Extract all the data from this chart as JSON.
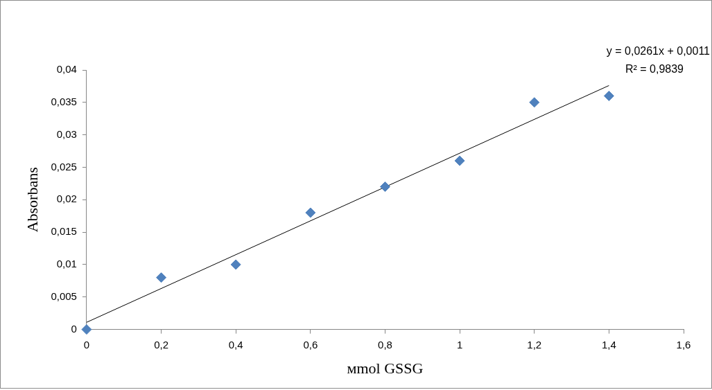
{
  "chart_data": {
    "type": "scatter",
    "xlabel": "мmol GSSG",
    "ylabel": "Absorbans",
    "xlim": [
      0,
      1.6
    ],
    "ylim": [
      0,
      0.04
    ],
    "xticks": [
      0,
      {
        "value": 0.2,
        "label": "0,2"
      },
      {
        "value": 0.4,
        "label": "0,4"
      },
      {
        "value": 0.6,
        "label": "0,6"
      },
      {
        "value": 0.8,
        "label": "0,8"
      },
      1,
      {
        "value": 1.2,
        "label": "1,2"
      },
      {
        "value": 1.4,
        "label": "1,4"
      },
      {
        "value": 1.6,
        "label": "1,6"
      }
    ],
    "yticks": [
      0,
      {
        "value": 0.005,
        "label": "0,005"
      },
      {
        "value": 0.01,
        "label": "0,01"
      },
      {
        "value": 0.015,
        "label": "0,015"
      },
      {
        "value": 0.02,
        "label": "0,02"
      },
      {
        "value": 0.025,
        "label": "0,025"
      },
      {
        "value": 0.03,
        "label": "0,03"
      },
      {
        "value": 0.035,
        "label": "0,035"
      },
      {
        "value": 0.04,
        "label": "0,04"
      }
    ],
    "series": [
      {
        "color": "#4f81bd",
        "marker": "diamond",
        "x": [
          0,
          0.2,
          0.4,
          0.6,
          0.8,
          1,
          1.2,
          1.4
        ],
        "values": [
          0,
          0.008,
          0.01,
          0.018,
          0.022,
          0.026,
          0.035,
          0.036
        ]
      },
      {
        "type": "line",
        "color": "#000000",
        "marker": "none",
        "x": [
          0,
          1.4
        ],
        "values": [
          0.0011,
          0.0376
        ]
      }
    ],
    "annotations": [
      "y = 0,0261x + 0,0011",
      "R² = 0,9839"
    ],
    "grid": false,
    "legend": false
  }
}
